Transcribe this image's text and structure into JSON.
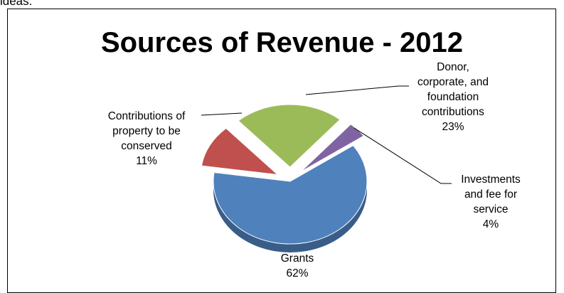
{
  "page": {
    "fragment": "ideas."
  },
  "chart_data": {
    "type": "pie",
    "title": "Sources of Revenue - 2012",
    "style": "3d-exploded",
    "legend": "none",
    "slices": [
      {
        "name": "Grants",
        "value": 62,
        "label": "62%",
        "color": "#4f81bd",
        "text": [
          "Grants",
          "62%"
        ]
      },
      {
        "name": "Contributions of property to be conserved",
        "value": 11,
        "label": "11%",
        "color": "#c0504d",
        "text": [
          "Contributions of",
          "property to be",
          "conserved",
          "11%"
        ]
      },
      {
        "name": "Donor, corporate, and foundation contributions",
        "value": 23,
        "label": "23%",
        "color": "#9bbb59",
        "text": [
          "Donor,",
          "corporate, and",
          "foundation",
          "contributions",
          "23%"
        ]
      },
      {
        "name": "Investments and fee for service",
        "value": 4,
        "label": "4%",
        "color": "#8064a2",
        "text": [
          "Investments",
          "and fee for",
          "service",
          "4%"
        ]
      }
    ]
  }
}
